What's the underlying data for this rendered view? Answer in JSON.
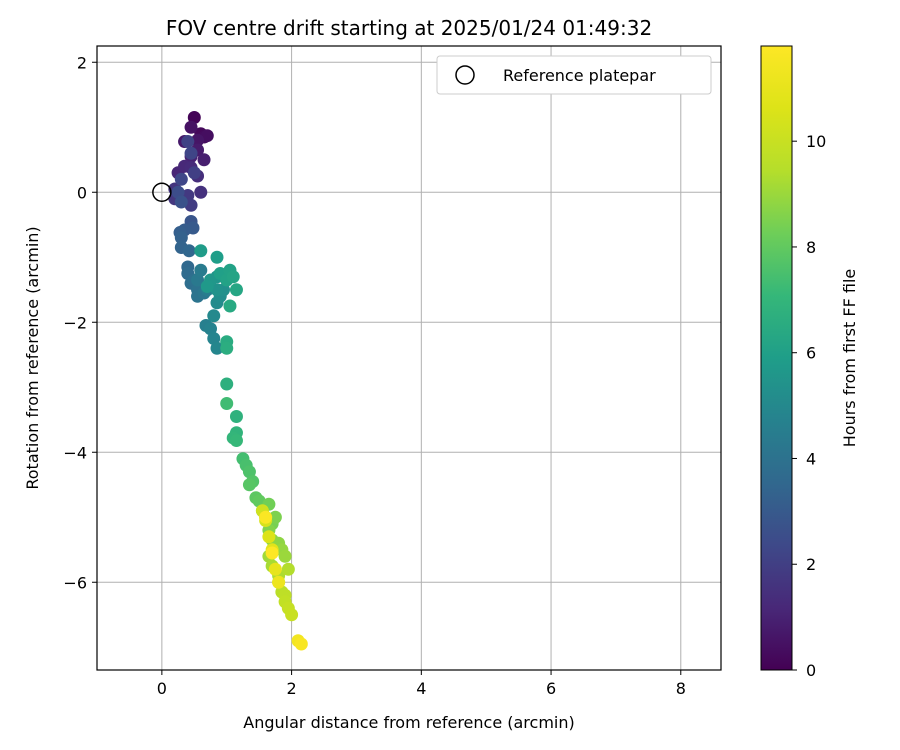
{
  "chart_data": {
    "type": "scatter",
    "title": "FOV centre drift starting at 2025/01/24 01:49:32",
    "xlabel": "Angular distance from reference (arcmin)",
    "ylabel": "Rotation from reference (arcmin)",
    "xlim": [
      -1.0,
      8.62
    ],
    "ylim": [
      -7.35,
      2.25
    ],
    "xticks": [
      0,
      2,
      4,
      6,
      8
    ],
    "yticks": [
      2,
      0,
      -2,
      -4,
      -6
    ],
    "grid": true,
    "legend": {
      "position": "top-right",
      "entries": [
        "Reference platepar"
      ]
    },
    "reference_point": {
      "x": 0,
      "y": 0,
      "marker": "open-circle"
    },
    "colorbar": {
      "label": "Hours from first FF file",
      "range": [
        0,
        11.8
      ],
      "ticks": [
        0,
        2,
        4,
        6,
        8,
        10
      ],
      "colormap": "viridis"
    },
    "points": [
      [
        0.5,
        1.15,
        0.1
      ],
      [
        0.6,
        0.9,
        0.2
      ],
      [
        0.65,
        0.85,
        0.3
      ],
      [
        0.7,
        0.87,
        0.4
      ],
      [
        0.45,
        1.0,
        0.5
      ],
      [
        0.55,
        0.8,
        0.6
      ],
      [
        0.35,
        0.78,
        0.7
      ],
      [
        0.55,
        0.65,
        0.8
      ],
      [
        0.65,
        0.5,
        0.9
      ],
      [
        0.45,
        0.55,
        1.0
      ],
      [
        0.25,
        0.3,
        1.1
      ],
      [
        0.35,
        0.4,
        1.2
      ],
      [
        0.45,
        0.38,
        1.3
      ],
      [
        0.55,
        0.25,
        1.4
      ],
      [
        0.6,
        0.0,
        1.5
      ],
      [
        0.2,
        0.05,
        1.6
      ],
      [
        0.2,
        -0.1,
        1.7
      ],
      [
        0.4,
        -0.05,
        1.8
      ],
      [
        0.45,
        -0.2,
        1.9
      ],
      [
        0.5,
        0.3,
        2.0
      ],
      [
        0.4,
        0.78,
        2.1
      ],
      [
        0.45,
        0.6,
        2.2
      ],
      [
        0.3,
        0.2,
        2.3
      ],
      [
        0.25,
        0.0,
        2.5
      ],
      [
        0.3,
        -0.15,
        2.7
      ],
      [
        0.45,
        -0.45,
        2.8
      ],
      [
        0.48,
        -0.55,
        3.0
      ],
      [
        0.35,
        -0.58,
        3.1
      ],
      [
        0.28,
        -0.62,
        3.2
      ],
      [
        0.3,
        -0.7,
        3.3
      ],
      [
        0.3,
        -0.85,
        3.4
      ],
      [
        0.42,
        -0.9,
        3.5
      ],
      [
        0.4,
        -1.15,
        3.6
      ],
      [
        0.4,
        -1.25,
        3.7
      ],
      [
        0.45,
        -1.4,
        3.8
      ],
      [
        0.5,
        -1.35,
        3.9
      ],
      [
        0.55,
        -1.5,
        4.0
      ],
      [
        0.55,
        -1.6,
        4.1
      ],
      [
        0.65,
        -1.55,
        4.2
      ],
      [
        0.55,
        -1.35,
        4.3
      ],
      [
        0.6,
        -1.2,
        4.4
      ],
      [
        0.7,
        -1.5,
        4.5
      ],
      [
        0.68,
        -2.05,
        4.6
      ],
      [
        0.75,
        -2.1,
        4.7
      ],
      [
        0.8,
        -2.25,
        4.8
      ],
      [
        0.85,
        -2.4,
        4.9
      ],
      [
        0.8,
        -1.9,
        5.0
      ],
      [
        0.85,
        -1.7,
        5.1
      ],
      [
        0.9,
        -1.6,
        5.2
      ],
      [
        0.95,
        -1.5,
        5.3
      ],
      [
        0.85,
        -1.5,
        5.4
      ],
      [
        0.85,
        -1.3,
        5.5
      ],
      [
        0.75,
        -1.35,
        5.6
      ],
      [
        0.7,
        -1.45,
        5.7
      ],
      [
        0.6,
        -0.9,
        5.8
      ],
      [
        0.85,
        -1.0,
        5.9
      ],
      [
        0.9,
        -1.25,
        6.0
      ],
      [
        1.0,
        -1.35,
        6.1
      ],
      [
        1.05,
        -1.2,
        6.1
      ],
      [
        1.1,
        -1.3,
        6.2
      ],
      [
        1.15,
        -1.5,
        6.3
      ],
      [
        1.05,
        -1.75,
        6.4
      ],
      [
        1.0,
        -2.3,
        6.5
      ],
      [
        1.0,
        -2.4,
        6.6
      ],
      [
        1.0,
        -2.95,
        6.7
      ],
      [
        1.15,
        -3.45,
        6.8
      ],
      [
        1.15,
        -3.7,
        6.9
      ],
      [
        1.1,
        -3.78,
        7.0
      ],
      [
        1.15,
        -3.82,
        7.1
      ],
      [
        1.0,
        -3.25,
        7.3
      ],
      [
        1.25,
        -4.1,
        7.4
      ],
      [
        1.3,
        -4.2,
        7.5
      ],
      [
        1.35,
        -4.3,
        7.6
      ],
      [
        1.4,
        -4.45,
        7.7
      ],
      [
        1.35,
        -4.5,
        7.8
      ],
      [
        1.45,
        -4.7,
        7.9
      ],
      [
        1.5,
        -4.75,
        8.0
      ],
      [
        1.55,
        -4.9,
        8.1
      ],
      [
        1.6,
        -5.0,
        8.2
      ],
      [
        1.65,
        -4.8,
        8.3
      ],
      [
        1.7,
        -5.1,
        8.4
      ],
      [
        1.75,
        -5.0,
        8.5
      ],
      [
        1.65,
        -5.2,
        8.6
      ],
      [
        1.7,
        -5.35,
        8.7
      ],
      [
        1.8,
        -5.4,
        8.8
      ],
      [
        1.85,
        -5.5,
        8.9
      ],
      [
        1.9,
        -5.6,
        9.0
      ],
      [
        1.65,
        -5.6,
        9.1
      ],
      [
        1.7,
        -5.75,
        9.2
      ],
      [
        1.8,
        -5.9,
        9.3
      ],
      [
        1.95,
        -5.8,
        9.4
      ],
      [
        1.8,
        -6.0,
        9.5
      ],
      [
        1.85,
        -6.15,
        9.6
      ],
      [
        1.9,
        -6.2,
        9.7
      ],
      [
        1.9,
        -6.3,
        9.8
      ],
      [
        1.95,
        -6.4,
        9.9
      ],
      [
        2.0,
        -6.5,
        10.0
      ],
      [
        1.55,
        -4.9,
        10.2
      ],
      [
        1.6,
        -5.05,
        10.4
      ],
      [
        1.65,
        -5.3,
        10.6
      ],
      [
        1.7,
        -5.5,
        10.8
      ],
      [
        1.75,
        -5.8,
        11.0
      ],
      [
        1.8,
        -6.0,
        11.2
      ],
      [
        2.1,
        -6.9,
        11.4
      ],
      [
        2.15,
        -6.95,
        11.6
      ],
      [
        1.6,
        -5.0,
        11.7
      ],
      [
        1.7,
        -5.55,
        11.8
      ]
    ]
  }
}
